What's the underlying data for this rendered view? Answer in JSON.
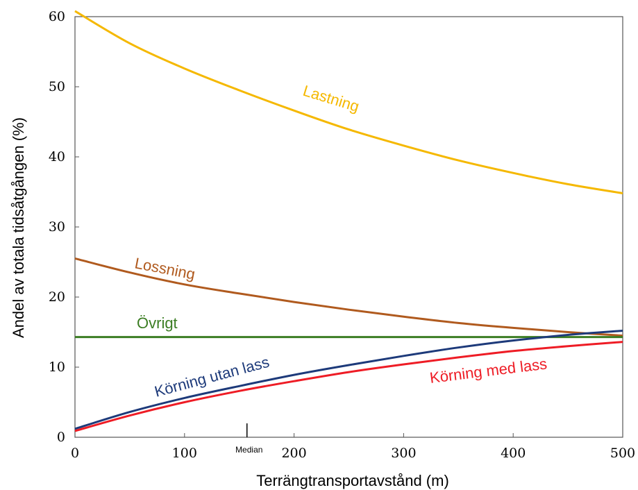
{
  "chart_data": {
    "type": "line",
    "title": "",
    "xlabel": "Terrängtransportavstånd (m)",
    "ylabel": "Andel av totala tidsåtgången (%)",
    "xlim": [
      0,
      500
    ],
    "ylim": [
      0,
      60
    ],
    "xticks": [
      0,
      100,
      200,
      300,
      400,
      500
    ],
    "yticks": [
      0,
      10,
      20,
      30,
      40,
      50,
      60
    ],
    "grid": false,
    "legend": "none",
    "x": [
      0,
      50,
      100,
      150,
      200,
      250,
      300,
      350,
      400,
      450,
      500
    ],
    "series": [
      {
        "name": "Lastning",
        "color": "#f5b800",
        "values": [
          60.8,
          56.2,
          52.6,
          49.5,
          46.6,
          43.9,
          41.6,
          39.5,
          37.7,
          36.1,
          34.8
        ]
      },
      {
        "name": "Lossning",
        "color": "#b05a1e",
        "values": [
          25.5,
          23.5,
          21.8,
          20.5,
          19.3,
          18.2,
          17.2,
          16.3,
          15.6,
          15.0,
          14.5
        ]
      },
      {
        "name": "Övrigt",
        "color": "#3b7d23",
        "values": [
          14.3,
          14.3,
          14.3,
          14.3,
          14.3,
          14.3,
          14.3,
          14.3,
          14.3,
          14.3,
          14.3
        ]
      },
      {
        "name": "Körning utan lass",
        "color": "#1d3a7a",
        "values": [
          1.2,
          3.6,
          5.6,
          7.3,
          8.9,
          10.3,
          11.6,
          12.8,
          13.8,
          14.6,
          15.2
        ]
      },
      {
        "name": "Körning med lass",
        "color": "#ee1c25",
        "values": [
          0.9,
          3.1,
          5.0,
          6.6,
          8.0,
          9.3,
          10.4,
          11.4,
          12.3,
          13.0,
          13.6
        ]
      }
    ],
    "annotations": {
      "median_label": "Median",
      "median_x": 157
    }
  }
}
